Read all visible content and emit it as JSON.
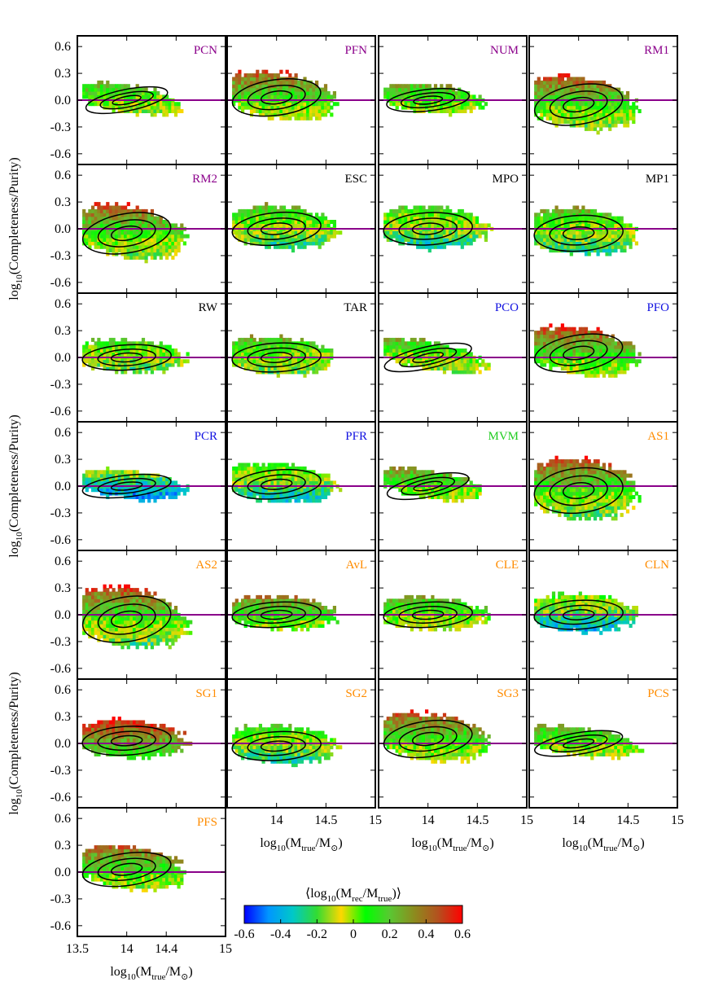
{
  "chart_data": {
    "type": "heatmap",
    "panels": [
      {
        "name": "PCN",
        "color": "#8b008b",
        "center": [
          14.0,
          0.0
        ],
        "spread": [
          0.42,
          0.12
        ],
        "tilt": -0.18,
        "bias": 0.05
      },
      {
        "name": "PFN",
        "color": "#8b008b",
        "center": [
          14.0,
          0.03
        ],
        "spread": [
          0.45,
          0.2
        ],
        "tilt": -0.12,
        "bias": 0.15
      },
      {
        "name": "NUM",
        "color": "#8b008b",
        "center": [
          14.0,
          0.0
        ],
        "spread": [
          0.42,
          0.12
        ],
        "tilt": -0.1,
        "bias": 0.08
      },
      {
        "name": "RM1",
        "color": "#8b008b",
        "center": [
          14.0,
          -0.05
        ],
        "spread": [
          0.45,
          0.22
        ],
        "tilt": -0.15,
        "bias": 0.12
      },
      {
        "name": "RM2",
        "color": "#8b008b",
        "center": [
          14.0,
          -0.05
        ],
        "spread": [
          0.45,
          0.22
        ],
        "tilt": -0.15,
        "bias": 0.12
      },
      {
        "name": "ESC",
        "color": "#000000",
        "center": [
          14.0,
          0.0
        ],
        "spread": [
          0.45,
          0.18
        ],
        "tilt": -0.08,
        "bias": -0.05
      },
      {
        "name": "MPO",
        "color": "#000000",
        "center": [
          14.0,
          0.0
        ],
        "spread": [
          0.45,
          0.18
        ],
        "tilt": -0.05,
        "bias": -0.1
      },
      {
        "name": "MP1",
        "color": "#000000",
        "center": [
          14.0,
          -0.05
        ],
        "spread": [
          0.45,
          0.2
        ],
        "tilt": -0.05,
        "bias": -0.05
      },
      {
        "name": "RW",
        "color": "#000000",
        "center": [
          14.0,
          0.0
        ],
        "spread": [
          0.45,
          0.14
        ],
        "tilt": -0.05,
        "bias": -0.05
      },
      {
        "name": "TAR",
        "color": "#000000",
        "center": [
          14.0,
          0.0
        ],
        "spread": [
          0.45,
          0.16
        ],
        "tilt": -0.05,
        "bias": 0.0
      },
      {
        "name": "PCO",
        "color": "#1010e0",
        "center": [
          14.0,
          0.0
        ],
        "spread": [
          0.45,
          0.12
        ],
        "tilt": -0.2,
        "bias": 0.02
      },
      {
        "name": "PFO",
        "color": "#1010e0",
        "center": [
          14.0,
          0.05
        ],
        "spread": [
          0.45,
          0.2
        ],
        "tilt": -0.15,
        "bias": 0.18
      },
      {
        "name": "PCR",
        "color": "#1010e0",
        "center": [
          14.0,
          0.0
        ],
        "spread": [
          0.45,
          0.12
        ],
        "tilt": -0.1,
        "bias": -0.3
      },
      {
        "name": "PFR",
        "color": "#1010e0",
        "center": [
          14.0,
          0.02
        ],
        "spread": [
          0.45,
          0.16
        ],
        "tilt": -0.08,
        "bias": -0.15
      },
      {
        "name": "MVM",
        "color": "#22cc22",
        "center": [
          14.0,
          0.0
        ],
        "spread": [
          0.42,
          0.12
        ],
        "tilt": -0.18,
        "bias": 0.1
      },
      {
        "name": "AS1",
        "color": "#ff8c00",
        "center": [
          14.0,
          -0.05
        ],
        "spread": [
          0.45,
          0.25
        ],
        "tilt": -0.1,
        "bias": 0.1
      },
      {
        "name": "AS2",
        "color": "#ff8c00",
        "center": [
          14.0,
          -0.05
        ],
        "spread": [
          0.45,
          0.25
        ],
        "tilt": -0.15,
        "bias": 0.1
      },
      {
        "name": "AvL",
        "color": "#ff8c00",
        "center": [
          14.0,
          0.0
        ],
        "spread": [
          0.45,
          0.14
        ],
        "tilt": -0.05,
        "bias": 0.15
      },
      {
        "name": "CLE",
        "color": "#ff8c00",
        "center": [
          14.0,
          0.0
        ],
        "spread": [
          0.45,
          0.14
        ],
        "tilt": -0.05,
        "bias": 0.05
      },
      {
        "name": "CLN",
        "color": "#ff8c00",
        "center": [
          14.0,
          0.0
        ],
        "spread": [
          0.45,
          0.16
        ],
        "tilt": -0.05,
        "bias": -0.2
      },
      {
        "name": "SG1",
        "color": "#ff8c00",
        "center": [
          14.0,
          0.03
        ],
        "spread": [
          0.45,
          0.16
        ],
        "tilt": -0.05,
        "bias": 0.3
      },
      {
        "name": "SG2",
        "color": "#ff8c00",
        "center": [
          14.0,
          -0.03
        ],
        "spread": [
          0.45,
          0.16
        ],
        "tilt": -0.05,
        "bias": -0.1
      },
      {
        "name": "SG3",
        "color": "#ff8c00",
        "center": [
          14.0,
          0.05
        ],
        "spread": [
          0.45,
          0.2
        ],
        "tilt": -0.12,
        "bias": 0.15
      },
      {
        "name": "PCS",
        "color": "#ff8c00",
        "center": [
          14.0,
          0.0
        ],
        "spread": [
          0.45,
          0.12
        ],
        "tilt": -0.15,
        "bias": 0.05
      },
      {
        "name": "PFS",
        "color": "#ff8c00",
        "center": [
          14.0,
          0.03
        ],
        "spread": [
          0.45,
          0.18
        ],
        "tilt": -0.12,
        "bias": 0.15
      }
    ],
    "ylabel": "log10(Completeness/Purity)",
    "xlabel": "log10(Mtrue/M⊙)",
    "y_ticks": [
      "0.6",
      "0.3",
      "0.0",
      "-0.3",
      "-0.6"
    ],
    "y_tick_values": [
      0.6,
      0.3,
      0.0,
      -0.3,
      -0.6
    ],
    "ylim": [
      -0.72,
      0.72
    ],
    "xlim": [
      13.5,
      15.0
    ],
    "x_ticks_main": [
      "14",
      "14.5",
      "15"
    ],
    "x_tick_values_main": [
      14,
      14.5,
      15
    ],
    "x_ticks_last": [
      "13.5",
      "14",
      "14.4",
      "15"
    ],
    "x_tick_values_last": [
      13.5,
      14,
      14.4,
      15
    ],
    "reference_line": {
      "y": 0.0,
      "color": "#8b008b"
    },
    "colorbar": {
      "label": "⟨log10(Mrec/Mtrue)⟩",
      "ticks": [
        "-0.6",
        "-0.4",
        "-0.2",
        "0",
        "0.2",
        "0.4",
        "0.6"
      ],
      "tick_values": [
        -0.6,
        -0.4,
        -0.2,
        0,
        0.2,
        0.4,
        0.6
      ],
      "range": [
        -0.6,
        0.6
      ],
      "colors": [
        "#0000ff",
        "#0096ff",
        "#00c8c8",
        "#32dc32",
        "#ffd700",
        "#00ff00",
        "#5ac832",
        "#8c8c1e",
        "#b4501e",
        "#ff0000"
      ]
    },
    "grid": false,
    "legend": "none"
  },
  "labels": {
    "ylabel_main": "log",
    "ylabel_sub": "10",
    "ylabel_rest": "(Completeness/Purity)",
    "xlabel_main": "log",
    "xlabel_sub": "10",
    "xlabel_open": "(M",
    "xlabel_sub2": "true",
    "xlabel_slash": "/M",
    "xlabel_sun": "⊙",
    "xlabel_close": ")",
    "cb_open": "⟨log",
    "cb_sub": "10",
    "cb_m": "(M",
    "cb_rec": "rec",
    "cb_slash": "/M",
    "cb_true": "true",
    "cb_close": ")⟩"
  }
}
